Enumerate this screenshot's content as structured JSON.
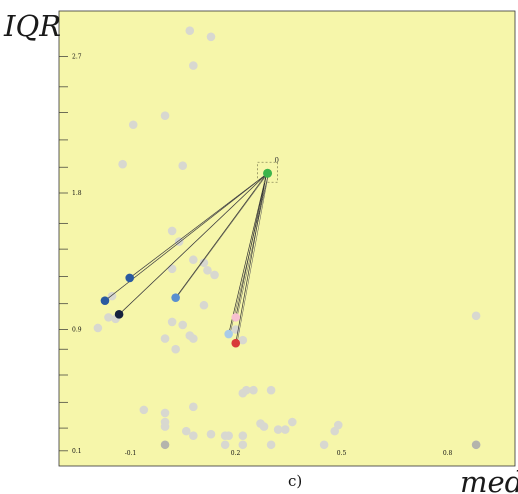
{
  "chart_data": {
    "type": "scatter",
    "title": "",
    "xlabel": "med",
    "ylabel": "IQR",
    "caption": "c)",
    "xlim": [
      -0.3,
      0.99
    ],
    "ylim": [
      0.0,
      3.0
    ],
    "grid": false,
    "background_color": "#f6f6aa",
    "x_ticks": [
      {
        "value": -0.1,
        "label": "-0.1"
      },
      {
        "value": 0.2,
        "label": "0.2"
      },
      {
        "value": 0.5,
        "label": "0.5"
      },
      {
        "value": 0.8,
        "label": "0.8"
      }
    ],
    "y_ticks": [
      {
        "value": 0.1,
        "label": "0.1"
      },
      {
        "value": 0.9,
        "label": "0.9"
      },
      {
        "value": 1.8,
        "label": "1.8"
      },
      {
        "value": 2.7,
        "label": "2.7"
      }
    ],
    "y_minor_ticks": [
      0.25,
      0.42,
      0.6,
      0.77,
      1.07,
      1.25,
      1.43,
      1.6,
      1.97,
      2.15,
      2.33,
      2.5
    ],
    "focus_point": {
      "x": 0.29,
      "y": 1.93,
      "color": "#3cb44b",
      "annotation": "0"
    },
    "neighbor_points": [
      {
        "x": -0.17,
        "y": 1.09,
        "color": "#2a5aa0"
      },
      {
        "x": -0.1,
        "y": 1.24,
        "color": "#2a5aa0"
      },
      {
        "x": -0.13,
        "y": 1.0,
        "color": "#16213d"
      },
      {
        "x": 0.03,
        "y": 1.11,
        "color": "#5a8fcf"
      },
      {
        "x": 0.18,
        "y": 0.87,
        "color": "#a8cbe8"
      },
      {
        "x": 0.2,
        "y": 0.98,
        "color": "#f7c1cf"
      },
      {
        "x": 0.2,
        "y": 0.81,
        "color": "#d83a3a"
      }
    ],
    "background_points": [
      {
        "x": 0.07,
        "y": 2.87
      },
      {
        "x": 0.13,
        "y": 2.83
      },
      {
        "x": 0.08,
        "y": 2.64
      },
      {
        "x": -0.09,
        "y": 2.25
      },
      {
        "x": 0.0,
        "y": 2.31
      },
      {
        "x": -0.12,
        "y": 1.99
      },
      {
        "x": 0.05,
        "y": 1.98
      },
      {
        "x": 0.02,
        "y": 1.55
      },
      {
        "x": 0.04,
        "y": 1.48
      },
      {
        "x": 0.08,
        "y": 1.36
      },
      {
        "x": 0.11,
        "y": 1.34
      },
      {
        "x": 0.02,
        "y": 1.3
      },
      {
        "x": 0.12,
        "y": 1.29
      },
      {
        "x": 0.14,
        "y": 1.26
      },
      {
        "x": 0.11,
        "y": 1.06
      },
      {
        "x": 0.02,
        "y": 0.95
      },
      {
        "x": 0.05,
        "y": 0.93
      },
      {
        "x": 0.07,
        "y": 0.86
      },
      {
        "x": 0.08,
        "y": 0.84
      },
      {
        "x": 0.0,
        "y": 0.84
      },
      {
        "x": 0.2,
        "y": 0.9
      },
      {
        "x": 0.22,
        "y": 0.83
      },
      {
        "x": 0.03,
        "y": 0.77
      },
      {
        "x": -0.16,
        "y": 0.98
      },
      {
        "x": -0.14,
        "y": 0.97
      },
      {
        "x": -0.15,
        "y": 1.12
      },
      {
        "x": -0.19,
        "y": 0.91
      },
      {
        "x": 0.22,
        "y": 0.48
      },
      {
        "x": 0.23,
        "y": 0.5
      },
      {
        "x": 0.25,
        "y": 0.5
      },
      {
        "x": 0.3,
        "y": 0.5
      },
      {
        "x": 0.08,
        "y": 0.39
      },
      {
        "x": -0.06,
        "y": 0.37
      },
      {
        "x": 0.0,
        "y": 0.35
      },
      {
        "x": 0.0,
        "y": 0.29
      },
      {
        "x": 0.0,
        "y": 0.26
      },
      {
        "x": 0.06,
        "y": 0.23
      },
      {
        "x": 0.08,
        "y": 0.2
      },
      {
        "x": 0.13,
        "y": 0.21
      },
      {
        "x": 0.17,
        "y": 0.2
      },
      {
        "x": 0.22,
        "y": 0.2
      },
      {
        "x": 0.27,
        "y": 0.28
      },
      {
        "x": 0.28,
        "y": 0.26
      },
      {
        "x": 0.32,
        "y": 0.24
      },
      {
        "x": 0.34,
        "y": 0.24
      },
      {
        "x": 0.36,
        "y": 0.29
      },
      {
        "x": 0.18,
        "y": 0.2
      },
      {
        "x": 0.45,
        "y": 0.14
      },
      {
        "x": 0.48,
        "y": 0.23
      },
      {
        "x": 0.49,
        "y": 0.27
      },
      {
        "x": 0.88,
        "y": 0.14
      },
      {
        "x": 0.88,
        "y": 0.99
      },
      {
        "x": 0.17,
        "y": 0.14
      },
      {
        "x": 0.22,
        "y": 0.14
      },
      {
        "x": 0.3,
        "y": 0.14
      }
    ],
    "background_point_color": "#d8d8d0",
    "highlight_dot_color": "#b4b4ac",
    "highlight_dots": [
      {
        "x": 0.0,
        "y": 0.14
      },
      {
        "x": 0.88,
        "y": 0.14
      }
    ]
  }
}
